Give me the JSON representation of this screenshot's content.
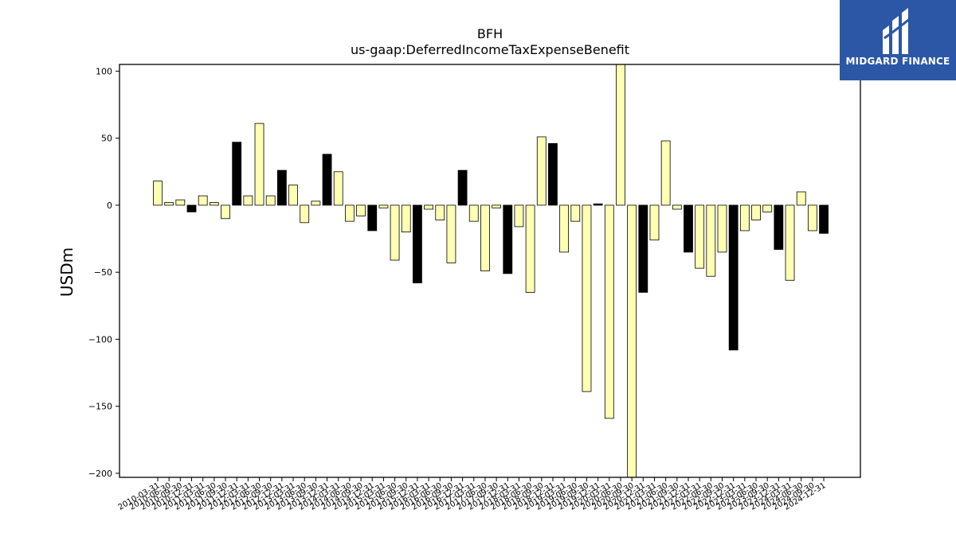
{
  "chart_data": {
    "type": "bar",
    "title": "BFH",
    "subtitle": "us-gaap:DeferredIncomeTaxExpenseBenefit",
    "ylabel": "USDm",
    "xlabel": "",
    "ylim": [
      -203,
      105
    ],
    "yticks": [
      100,
      50,
      0,
      -50,
      -100,
      -150,
      -200
    ],
    "ytick_labels": [
      "100",
      "50",
      "0",
      "−50",
      "−100",
      "−150",
      "−200"
    ],
    "grid": false,
    "legend": "none",
    "colors": {
      "quarter": "#ffffb3",
      "annual": "#000000",
      "edge": "#000000"
    },
    "categories": [
      "2010-03-31",
      "2010-06-30",
      "2010-09-30",
      "2010-12-31",
      "2011-03-31",
      "2011-06-30",
      "2011-09-30",
      "2011-12-31",
      "2012-03-31",
      "2012-06-30",
      "2012-09-30",
      "2012-12-31",
      "2013-03-31",
      "2013-06-30",
      "2013-09-30",
      "2013-12-31",
      "2014-03-31",
      "2014-06-30",
      "2014-09-30",
      "2014-12-31",
      "2015-03-31",
      "2015-06-30",
      "2015-09-30",
      "2015-12-31",
      "2016-03-31",
      "2016-06-30",
      "2016-09-30",
      "2016-12-31",
      "2017-03-31",
      "2017-06-30",
      "2017-09-30",
      "2017-12-31",
      "2018-03-31",
      "2018-06-30",
      "2018-09-30",
      "2018-12-31",
      "2019-03-31",
      "2019-06-30",
      "2019-09-30",
      "2019-12-31",
      "2020-03-31",
      "2020-06-30",
      "2020-09-30",
      "2020-12-31",
      "2021-03-31",
      "2021-06-30",
      "2021-09-30",
      "2021-12-31",
      "2022-03-31",
      "2022-06-30",
      "2022-09-30",
      "2022-12-31",
      "2023-03-31",
      "2023-06-30",
      "2023-09-30",
      "2023-12-31",
      "2024-03-31",
      "2024-06-30",
      "2024-09-30",
      "2024-12-31"
    ],
    "values": [
      18,
      2,
      4,
      -5,
      7,
      2,
      -10,
      47,
      7,
      61,
      7,
      26,
      15,
      -13,
      3,
      38,
      25,
      -12,
      -8,
      -19,
      -2,
      -41,
      -20,
      -58,
      -3,
      -11,
      -43,
      26,
      -12,
      -49,
      -2,
      -51,
      -16,
      -65,
      51,
      46,
      -35,
      -12,
      -139,
      1,
      -159,
      110,
      -220,
      -65,
      -26,
      48,
      -3,
      -35,
      -47,
      -53,
      -35,
      -108,
      -19,
      -11,
      -5,
      -33,
      -56,
      10,
      -19,
      -21
    ],
    "annual_flags": [
      0,
      0,
      0,
      1,
      0,
      0,
      0,
      1,
      0,
      0,
      0,
      1,
      0,
      0,
      0,
      1,
      0,
      0,
      0,
      1,
      0,
      0,
      0,
      1,
      0,
      0,
      0,
      1,
      0,
      0,
      0,
      1,
      0,
      0,
      0,
      1,
      0,
      0,
      0,
      1,
      0,
      0,
      0,
      1,
      0,
      0,
      0,
      1,
      0,
      0,
      0,
      1,
      0,
      0,
      0,
      1,
      0,
      0,
      0,
      1
    ]
  },
  "logo": {
    "name": "MIDGARD FINANCE",
    "color": "#2b57a6"
  }
}
